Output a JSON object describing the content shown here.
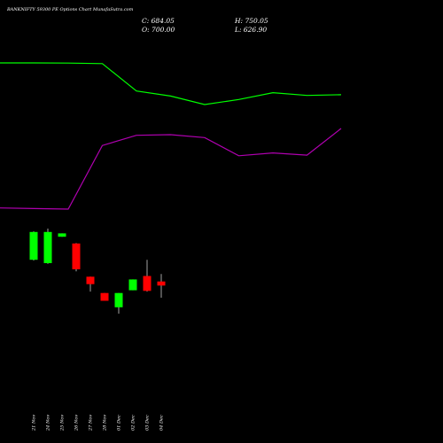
{
  "header": {
    "title": "BANKNIFTY 59300  PE Options  Chart MunafaSutra.com",
    "close": "C: 684.05",
    "open": "O: 700.00",
    "high": "H: 750.05",
    "low": "L: 626.90"
  },
  "chart_data": {
    "type": "candlestick",
    "categories": [
      "21 Nov",
      "24 Nov",
      "25 Nov",
      "26 Nov",
      "27 Nov",
      "28 Nov",
      "01 Dec",
      "02 Dec",
      "03 Dec",
      "04 Dec"
    ],
    "candles": [
      {
        "open": 490,
        "close": 900,
        "high": 910,
        "low": 480
      },
      {
        "open": 440,
        "close": 900,
        "high": 950,
        "low": 430
      },
      {
        "open": 830,
        "close": 880,
        "high": 880,
        "low": 830
      },
      {
        "open": 730,
        "close": 350,
        "high": 735,
        "low": 320
      },
      {
        "open": 240,
        "close": 130,
        "high": 240,
        "low": 20
      },
      {
        "open": 0,
        "close": -115,
        "high": 0,
        "low": -115
      },
      {
        "open": -210,
        "close": 0,
        "high": 0,
        "low": -305
      },
      {
        "open": 40,
        "close": 200,
        "high": 200,
        "low": 40
      },
      {
        "open": 250,
        "close": 30,
        "high": 490,
        "low": 20
      },
      {
        "open": 170,
        "close": 110,
        "high": 280,
        "low": -70
      }
    ],
    "green_line": [
      0.3,
      0.3,
      0.25,
      0.08,
      -8.0,
      -9.5,
      -12.0,
      -10.5,
      -8.5,
      -9.3,
      -9.1
    ],
    "magenta_line": [
      -60,
      -60.5,
      -61,
      -5,
      4,
      4.5,
      2,
      -14,
      -11.5,
      -13.5,
      10
    ],
    "colors": {
      "background": "#000000",
      "up": "#00ff00",
      "down": "#ff0000",
      "green_line": "#00ff00",
      "magenta_line": "#b000b0",
      "text": "#ffffff"
    }
  }
}
